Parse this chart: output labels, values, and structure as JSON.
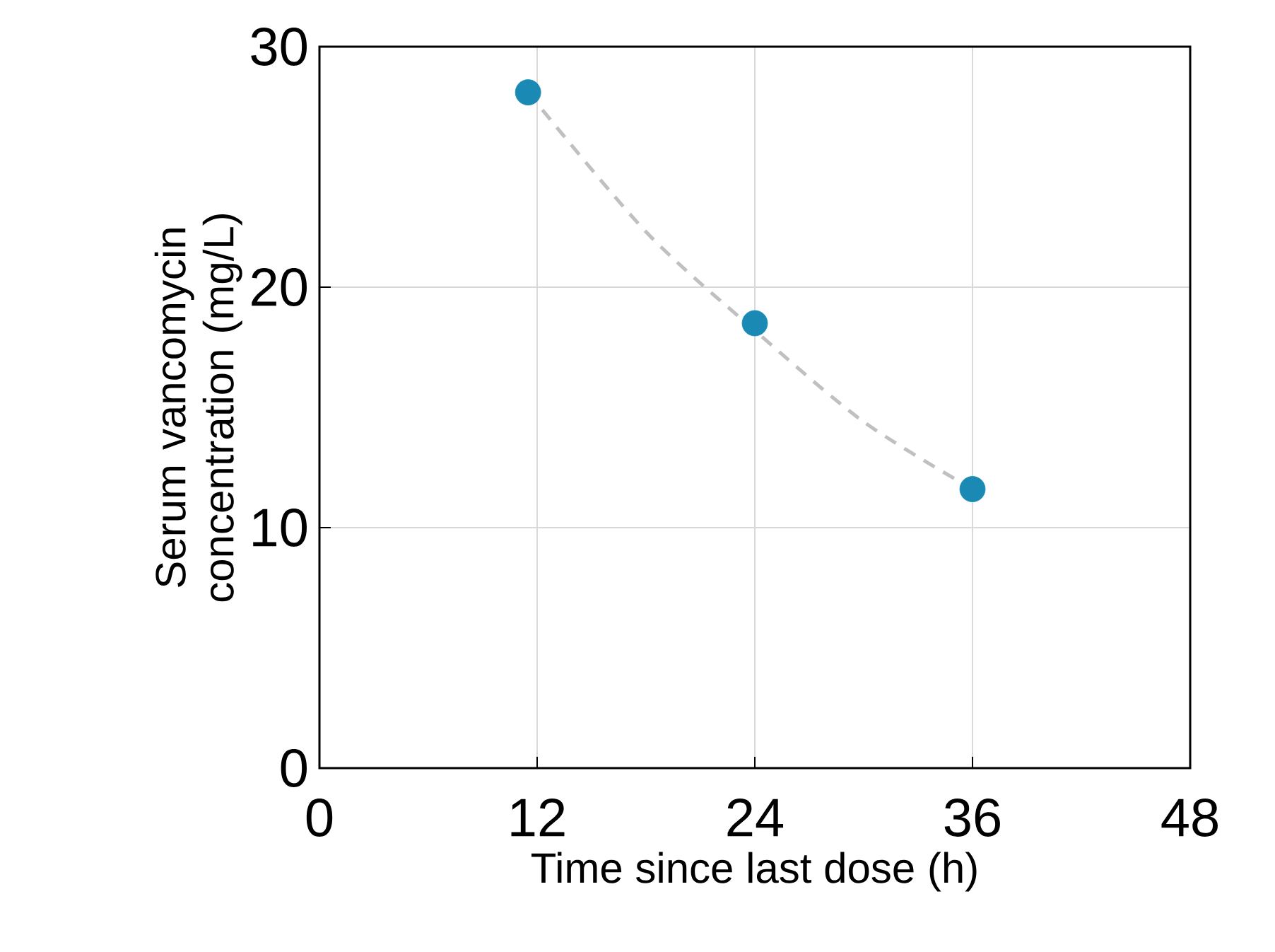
{
  "chart_data": {
    "type": "scatter",
    "xlabel": "Time since last dose (h)",
    "ylabel": "Serum vancomycin concentration (mg/L)",
    "xlim": [
      0,
      48
    ],
    "ylim": [
      0,
      30
    ],
    "xticks": [
      0,
      12,
      24,
      36,
      48
    ],
    "yticks": [
      0,
      10,
      20,
      30
    ],
    "grid": true,
    "marker": "circle",
    "series": [
      {
        "type": "line",
        "color": "#c0c0c0",
        "line_style": "dashed",
        "marker": "none",
        "x": [
          11.5,
          18,
          24,
          30,
          36
        ],
        "values": [
          28.1,
          22.3,
          18.2,
          14.4,
          11.6
        ]
      },
      {
        "color": "#1a8ab5",
        "x": [
          11.5,
          24,
          36
        ],
        "values": [
          28.1,
          18.5,
          11.6
        ]
      }
    ]
  }
}
